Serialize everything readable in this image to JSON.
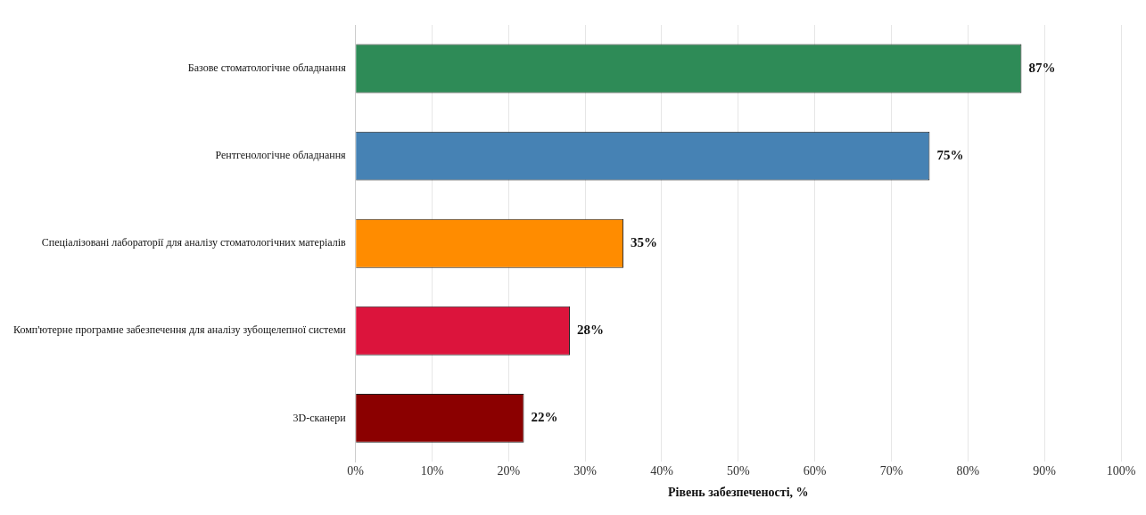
{
  "chart_data": {
    "type": "bar",
    "orientation": "horizontal",
    "categories": [
      "Базове стоматологічне обладнання",
      "Рентгенологічне обладнання",
      "Спеціалізовані лабораторії для аналізу стоматологічних матеріалів",
      "Комп'ютерне програмне забезпечення для аналізу зубощелепної системи",
      "3D-сканери"
    ],
    "values": [
      87,
      75,
      35,
      28,
      22
    ],
    "colors": [
      "#2e8b57",
      "#4682b4",
      "#ff8c00",
      "#dc143c",
      "#8b0000"
    ],
    "value_labels": [
      "87%",
      "75%",
      "35%",
      "28%",
      "22%"
    ],
    "xlabel": "Рівень забезпеченості, %",
    "xlim": [
      0,
      100
    ],
    "xticks": [
      {
        "value": 0,
        "label": "0%"
      },
      {
        "value": 10,
        "label": "10%"
      },
      {
        "value": 20,
        "label": "20%"
      },
      {
        "value": 30,
        "label": "30%"
      },
      {
        "value": 40,
        "label": "40%"
      },
      {
        "value": 50,
        "label": "50%"
      },
      {
        "value": 60,
        "label": "60%"
      },
      {
        "value": 70,
        "label": "70%"
      },
      {
        "value": 80,
        "label": "80%"
      },
      {
        "value": 90,
        "label": "90%"
      },
      {
        "value": 100,
        "label": "100%"
      }
    ],
    "grid": "x",
    "legend": false
  }
}
